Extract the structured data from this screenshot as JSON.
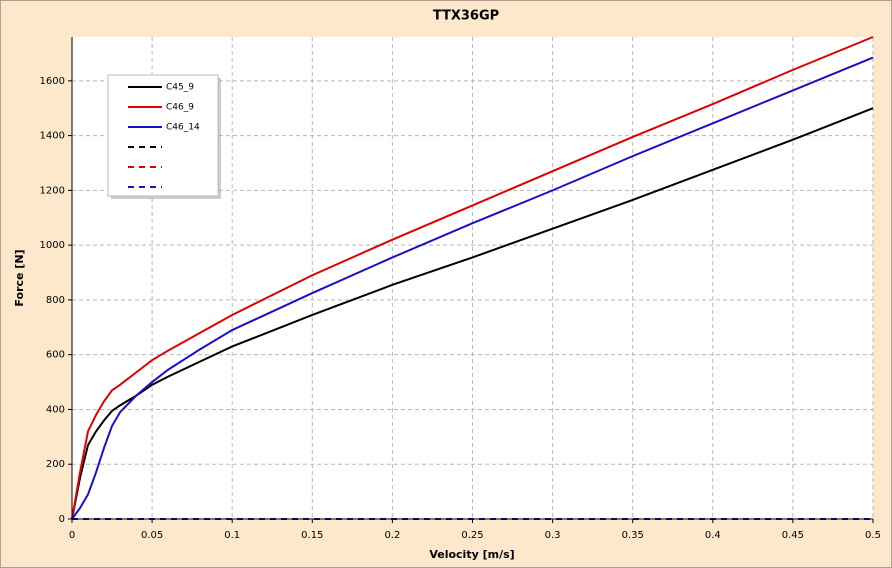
{
  "chart_data": {
    "type": "line",
    "title": "TTX36GP",
    "x_label": "Velocity [m/s]",
    "y_label": "Force [N]",
    "x": [
      0,
      0.005,
      0.01,
      0.015,
      0.02,
      0.025,
      0.03,
      0.04,
      0.05,
      0.06,
      0.08,
      0.1,
      0.15,
      0.2,
      0.25,
      0.3,
      0.35,
      0.4,
      0.45,
      0.5
    ],
    "series": [
      {
        "name": "C45_9",
        "color": "#000000",
        "values": [
          0,
          150,
          270,
          320,
          360,
          395,
          415,
          450,
          490,
          520,
          575,
          630,
          745,
          855,
          955,
          1060,
          1165,
          1275,
          1385,
          1500
        ]
      },
      {
        "name": "C46_9",
        "color": "#e00000",
        "values": [
          0,
          170,
          320,
          380,
          430,
          470,
          490,
          535,
          580,
          615,
          680,
          745,
          890,
          1020,
          1145,
          1270,
          1395,
          1515,
          1640,
          1760
        ]
      },
      {
        "name": "C46_14",
        "color": "#1a10c8",
        "values": [
          0,
          40,
          90,
          170,
          260,
          340,
          390,
          450,
          500,
          545,
          620,
          690,
          825,
          955,
          1080,
          1200,
          1325,
          1445,
          1565,
          1685
        ]
      },
      {
        "color": "#000000",
        "dashed": true,
        "values": [
          0,
          0,
          0,
          0,
          0,
          0,
          0,
          0,
          0,
          0,
          0,
          0,
          0,
          0,
          0,
          0,
          0,
          0,
          0,
          0
        ]
      },
      {
        "color": "#e00000",
        "dashed": true,
        "values": [
          0,
          0,
          0,
          0,
          0,
          0,
          0,
          0,
          0,
          0,
          0,
          0,
          0,
          0,
          0,
          0,
          0,
          0,
          0,
          0
        ]
      },
      {
        "color": "#1a10c8",
        "dashed": true,
        "values": [
          0,
          0,
          0,
          0,
          0,
          0,
          0,
          0,
          0,
          0,
          0,
          0,
          0,
          0,
          0,
          0,
          0,
          0,
          0,
          0
        ]
      }
    ],
    "xlim": [
      0,
      0.5
    ],
    "xticks": [
      0,
      0.05,
      0.1,
      0.15,
      0.2,
      0.25,
      0.3,
      0.35,
      0.4,
      0.45,
      0.5
    ],
    "ylim": [
      0,
      1760
    ],
    "yticks": [
      0,
      200,
      400,
      600,
      800,
      1000,
      1200,
      1400,
      1600
    ],
    "grid": true
  }
}
